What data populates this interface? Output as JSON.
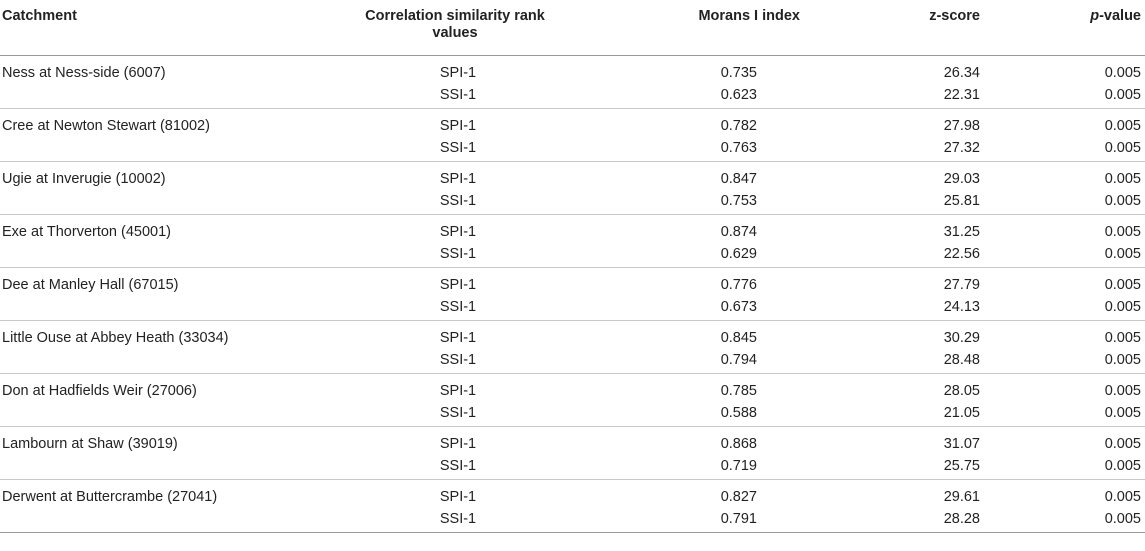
{
  "headers": {
    "catchment": "Catchment",
    "correlation_line1": "Correlation similarity rank",
    "correlation_line2": "values",
    "morans": "Morans I index",
    "zscore": "z-score",
    "pvalue_italic": "p",
    "pvalue_rest": "-value"
  },
  "rows": [
    {
      "catchment": "Ness at Ness-side (6007)",
      "entries": [
        {
          "rank": "SPI-1",
          "morans": "0.735",
          "z": "26.34",
          "p": "0.005"
        },
        {
          "rank": "SSI-1",
          "morans": "0.623",
          "z": "22.31",
          "p": "0.005"
        }
      ]
    },
    {
      "catchment": "Cree at Newton Stewart (81002)",
      "entries": [
        {
          "rank": "SPI-1",
          "morans": "0.782",
          "z": "27.98",
          "p": "0.005"
        },
        {
          "rank": "SSI-1",
          "morans": "0.763",
          "z": "27.32",
          "p": "0.005"
        }
      ]
    },
    {
      "catchment": "Ugie at Inverugie (10002)",
      "entries": [
        {
          "rank": "SPI-1",
          "morans": "0.847",
          "z": "29.03",
          "p": "0.005"
        },
        {
          "rank": "SSI-1",
          "morans": "0.753",
          "z": "25.81",
          "p": "0.005"
        }
      ]
    },
    {
      "catchment": "Exe at Thorverton (45001)",
      "entries": [
        {
          "rank": "SPI-1",
          "morans": "0.874",
          "z": "31.25",
          "p": "0.005"
        },
        {
          "rank": "SSI-1",
          "morans": "0.629",
          "z": "22.56",
          "p": "0.005"
        }
      ]
    },
    {
      "catchment": "Dee at Manley Hall (67015)",
      "entries": [
        {
          "rank": "SPI-1",
          "morans": "0.776",
          "z": "27.79",
          "p": "0.005"
        },
        {
          "rank": "SSI-1",
          "morans": "0.673",
          "z": "24.13",
          "p": "0.005"
        }
      ]
    },
    {
      "catchment": "Little Ouse at Abbey Heath (33034)",
      "entries": [
        {
          "rank": "SPI-1",
          "morans": "0.845",
          "z": "30.29",
          "p": "0.005"
        },
        {
          "rank": "SSI-1",
          "morans": "0.794",
          "z": "28.48",
          "p": "0.005"
        }
      ]
    },
    {
      "catchment": "Don at Hadfields Weir (27006)",
      "entries": [
        {
          "rank": "SPI-1",
          "morans": "0.785",
          "z": "28.05",
          "p": "0.005"
        },
        {
          "rank": "SSI-1",
          "morans": "0.588",
          "z": "21.05",
          "p": "0.005"
        }
      ]
    },
    {
      "catchment": "Lambourn at Shaw (39019)",
      "entries": [
        {
          "rank": "SPI-1",
          "morans": "0.868",
          "z": "31.07",
          "p": "0.005"
        },
        {
          "rank": "SSI-1",
          "morans": "0.719",
          "z": "25.75",
          "p": "0.005"
        }
      ]
    },
    {
      "catchment": "Derwent at Buttercrambe (27041)",
      "entries": [
        {
          "rank": "SPI-1",
          "morans": "0.827",
          "z": "29.61",
          "p": "0.005"
        },
        {
          "rank": "SSI-1",
          "morans": "0.791",
          "z": "28.28",
          "p": "0.005"
        }
      ]
    }
  ]
}
